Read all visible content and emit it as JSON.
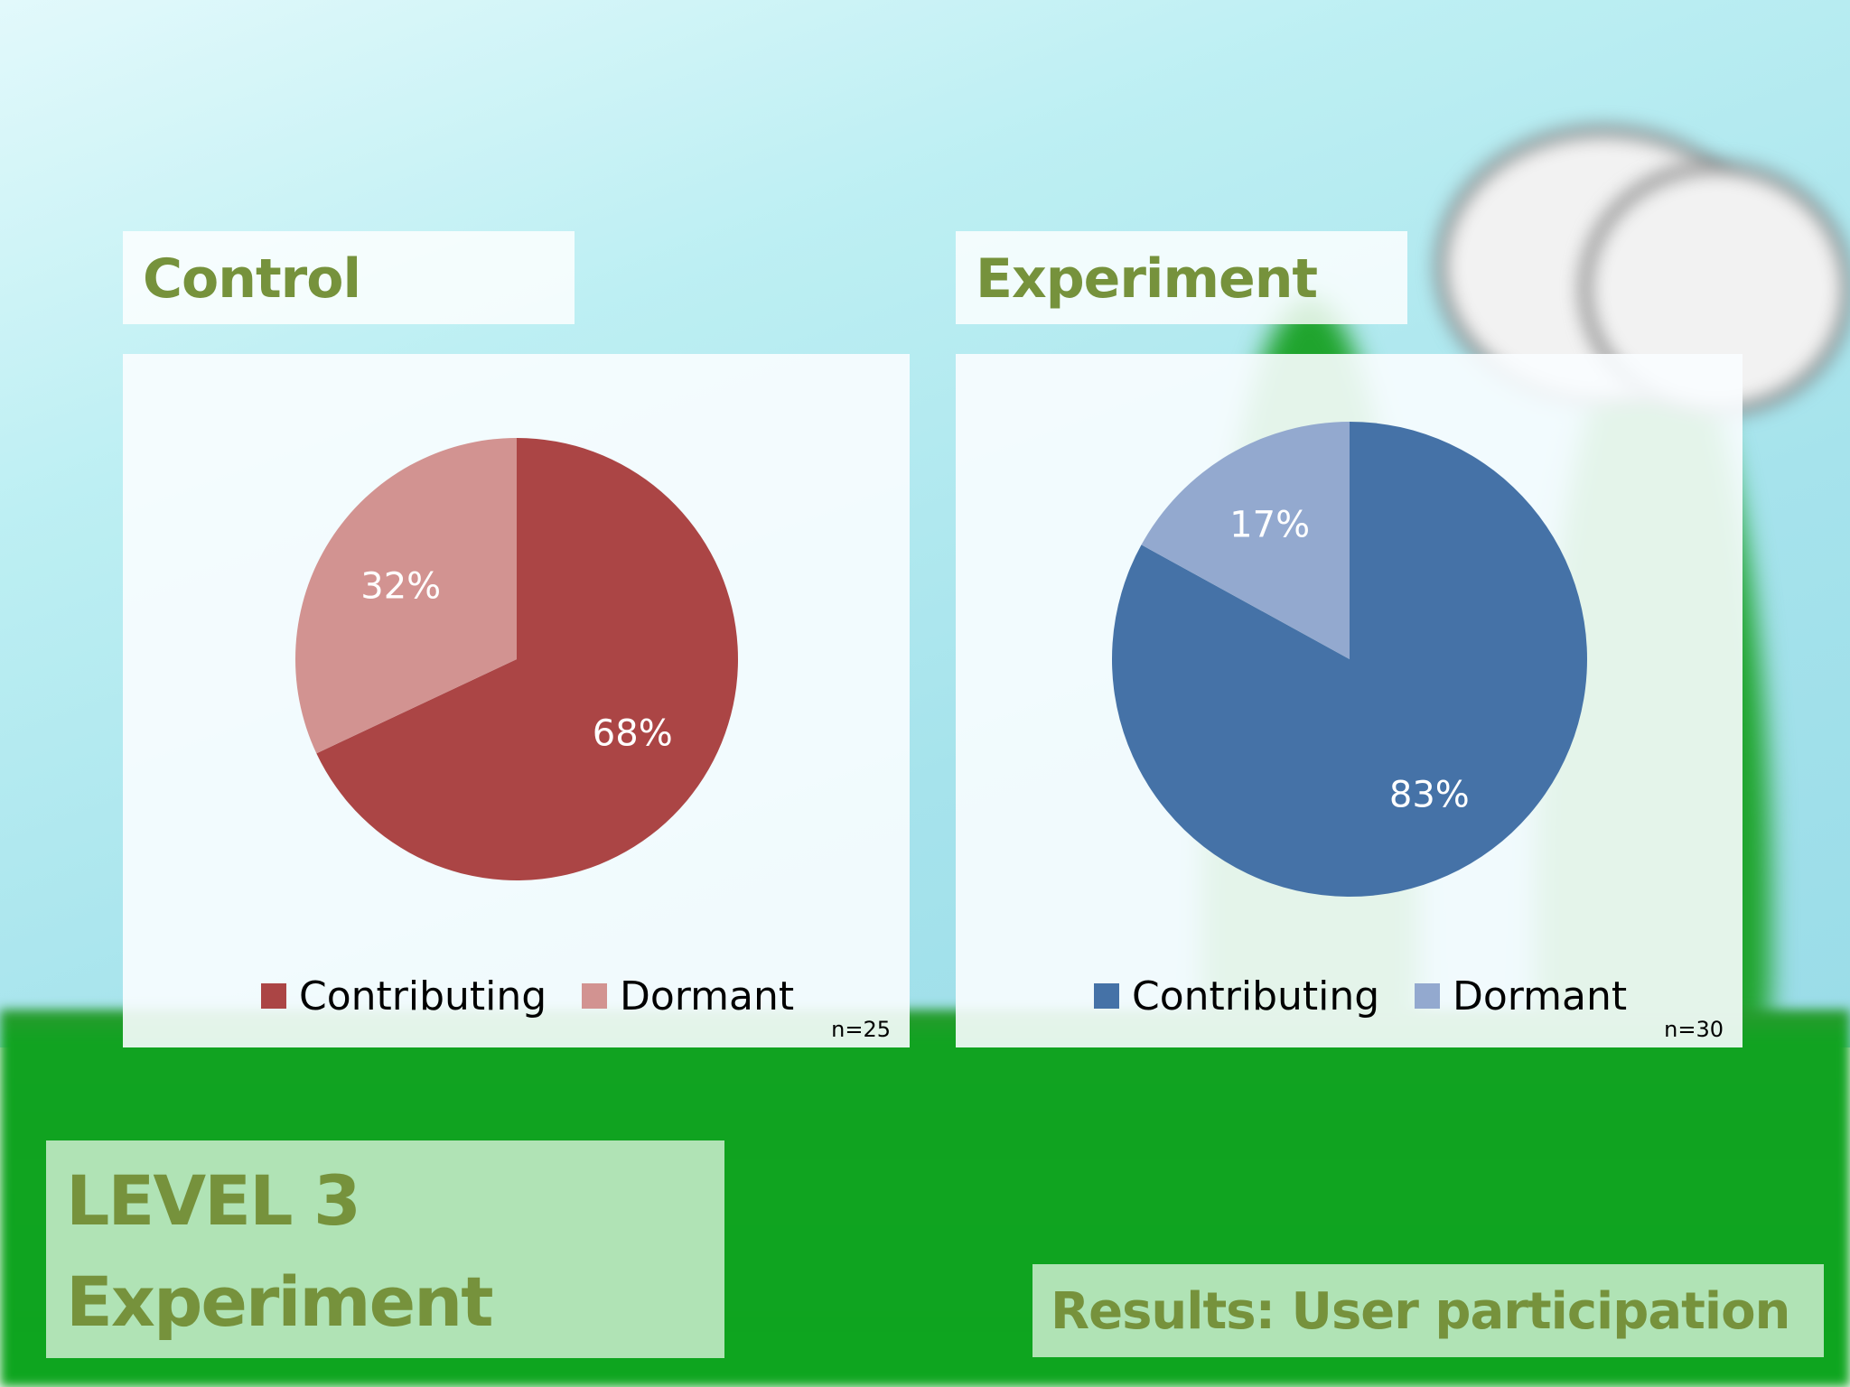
{
  "slide": {
    "level_line1": "LEVEL 3",
    "level_line2": "Experiment",
    "results_title": "Results: User participation"
  },
  "colors": {
    "title_text": "#76923c",
    "control_contributing": "#ab4545",
    "control_dormant": "#d29391",
    "experiment_contributing": "#4572a7",
    "experiment_dormant": "#93a9cf"
  },
  "chart_data": [
    {
      "type": "pie",
      "title": "Control",
      "categories": [
        "Contributing",
        "Dormant"
      ],
      "values": [
        68,
        32
      ],
      "labels": [
        "68%",
        "32%"
      ],
      "colors": [
        "#ab4545",
        "#d29391"
      ],
      "legend": "bottom",
      "note": "n=25"
    },
    {
      "type": "pie",
      "title": "Experiment",
      "categories": [
        "Contributing",
        "Dormant"
      ],
      "values": [
        83,
        17
      ],
      "labels": [
        "83%",
        "17%"
      ],
      "colors": [
        "#4572a7",
        "#93a9cf"
      ],
      "legend": "bottom",
      "note": "n=30"
    }
  ]
}
